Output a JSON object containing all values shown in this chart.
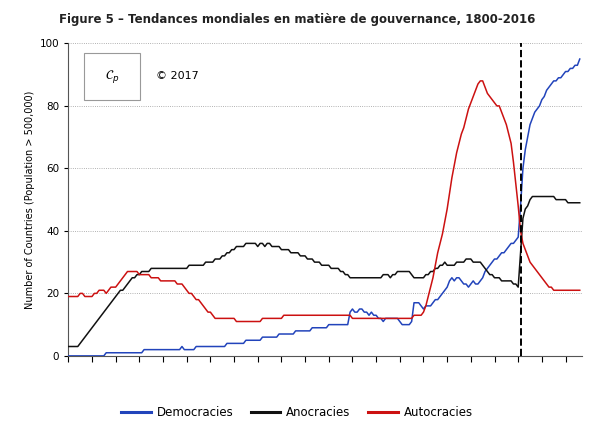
{
  "title": "Figure 5 – Tendances mondiales en matière de gouvernance, 1800-2016",
  "ylabel": "Number of Countries (Population > 500,000)",
  "xmin": 1800,
  "xmax": 2017,
  "ymin": 0,
  "ymax": 100,
  "yticks": [
    0,
    20,
    40,
    60,
    80,
    100
  ],
  "xticks_minor": [
    1810,
    1830,
    1850,
    1870,
    1890,
    1910,
    1930,
    1950,
    1970,
    1990,
    2010
  ],
  "xticks_major": [
    1800,
    1820,
    1840,
    1860,
    1880,
    1900,
    1920,
    1940,
    1960,
    1980,
    2000
  ],
  "dashed_line_x": 1991,
  "color_democracy": "#2244bb",
  "color_anocracy": "#111111",
  "color_autocracy": "#cc1111",
  "linewidth": 1.1,
  "background_color": "#ffffff",
  "grid_color": "#999999",
  "copyright_text": "© 2017",
  "legend_labels": [
    "Democracies",
    "Anocracies",
    "Autocracies"
  ]
}
